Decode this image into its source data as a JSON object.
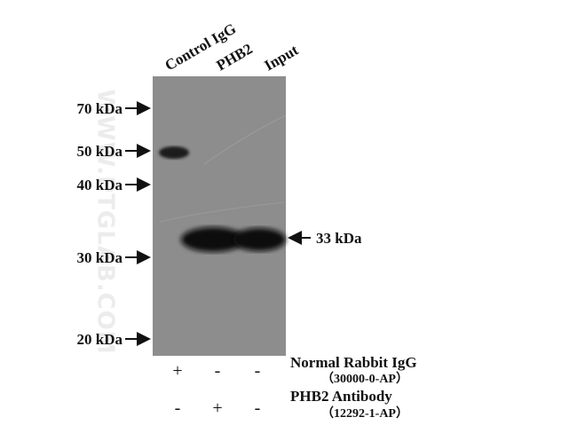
{
  "lanes": [
    "Control IgG",
    "PHB2",
    "Input"
  ],
  "markers": [
    "70 kDa",
    "50 kDa",
    "40 kDa",
    "30 kDa",
    "20 kDa"
  ],
  "band_label": "33 kDa",
  "watermark": "WWW.PTGLAB.COM",
  "rows": [
    {
      "name": "Normal Rabbit IgG",
      "catalog": "（30000-0-AP）",
      "signs": [
        "+",
        "-",
        "-"
      ]
    },
    {
      "name": "PHB2 Antibody",
      "catalog": "（12292-1-AP）",
      "signs": [
        "-",
        "+",
        "-"
      ]
    }
  ]
}
